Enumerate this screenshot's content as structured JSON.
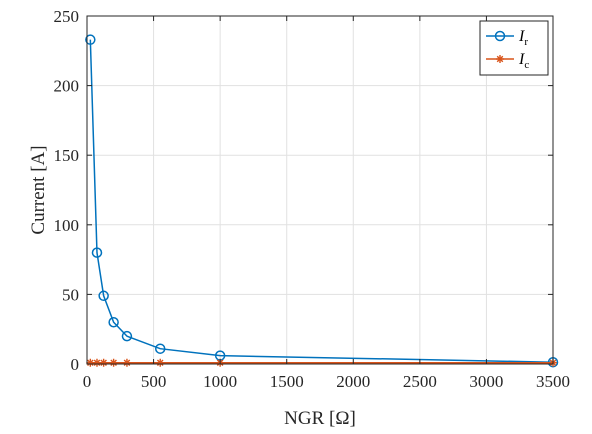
{
  "chart_data": {
    "type": "line",
    "xlabel": "NGR [Ω]",
    "ylabel": "Current [A]",
    "xlim": [
      0,
      3500
    ],
    "ylim": [
      0,
      250
    ],
    "xticks": [
      0,
      500,
      1000,
      1500,
      2000,
      2500,
      3000,
      3500
    ],
    "yticks": [
      0,
      50,
      100,
      150,
      200,
      250
    ],
    "grid": true,
    "legend_position": "top-right",
    "series": [
      {
        "name": "I_r",
        "legend_main": "I",
        "legend_sub": "r",
        "color": "#0072BD",
        "marker": "circle",
        "x": [
          25,
          75,
          125,
          200,
          300,
          550,
          1000,
          3500
        ],
        "values": [
          233,
          80,
          49,
          30,
          20,
          11,
          6,
          1.3
        ]
      },
      {
        "name": "I_c",
        "legend_main": "I",
        "legend_sub": "c",
        "color": "#D95319",
        "marker": "asterisk",
        "x": [
          25,
          75,
          125,
          200,
          300,
          550,
          1000,
          3500
        ],
        "values": [
          0.9,
          0.9,
          0.9,
          0.9,
          0.9,
          0.9,
          0.9,
          0.9
        ]
      }
    ]
  }
}
